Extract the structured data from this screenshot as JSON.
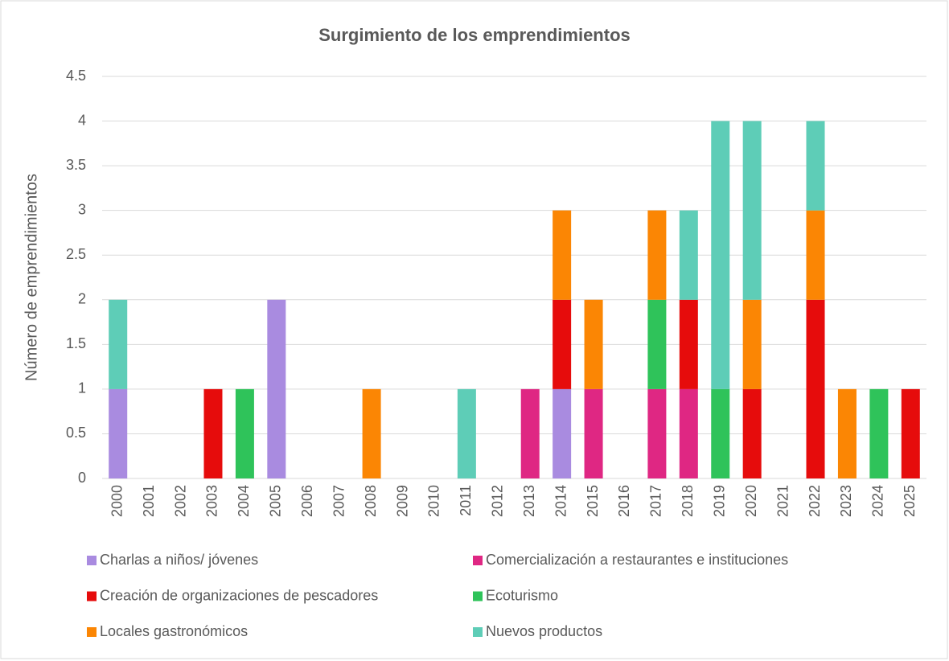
{
  "chart_data": {
    "type": "bar",
    "stacked": true,
    "title": "Surgimiento de los emprendimientos",
    "y_label": "Número de emprendimientos",
    "categories": [
      "2000",
      "2001",
      "2002",
      "2003",
      "2004",
      "2005",
      "2006",
      "2007",
      "2008",
      "2009",
      "2010",
      "2011",
      "2012",
      "2013",
      "2014",
      "2015",
      "2016",
      "2017",
      "2018",
      "2019",
      "2020",
      "2021",
      "2022",
      "2023",
      "2024",
      "2025"
    ],
    "series": [
      {
        "name": "Charlas a niños/ jóvenes",
        "color": "#a98be0",
        "values": [
          1,
          0,
          0,
          0,
          0,
          2,
          0,
          0,
          0,
          0,
          0,
          0,
          0,
          0,
          1,
          0,
          0,
          0,
          0,
          0,
          0,
          0,
          0,
          0,
          0,
          0
        ]
      },
      {
        "name": "Comercialización a restaurantes e instituciones",
        "color": "#df2783",
        "values": [
          0,
          0,
          0,
          0,
          0,
          0,
          0,
          0,
          0,
          0,
          0,
          0,
          0,
          1,
          0,
          1,
          0,
          1,
          1,
          0,
          0,
          0,
          0,
          0,
          0,
          0
        ]
      },
      {
        "name": "Creación de organizaciones de pescadores",
        "color": "#e60c0c",
        "values": [
          0,
          0,
          0,
          1,
          0,
          0,
          0,
          0,
          0,
          0,
          0,
          0,
          0,
          0,
          1,
          0,
          0,
          0,
          1,
          0,
          1,
          0,
          2,
          0,
          0,
          1
        ]
      },
      {
        "name": "Ecoturismo",
        "color": "#2fc35a",
        "values": [
          0,
          0,
          0,
          0,
          1,
          0,
          0,
          0,
          0,
          0,
          0,
          0,
          0,
          0,
          0,
          0,
          0,
          1,
          0,
          1,
          0,
          0,
          0,
          0,
          1,
          0
        ]
      },
      {
        "name": "Locales gastronómicos",
        "color": "#fb8604",
        "values": [
          0,
          0,
          0,
          0,
          0,
          0,
          0,
          0,
          1,
          0,
          0,
          0,
          0,
          0,
          1,
          1,
          0,
          1,
          0,
          0,
          1,
          0,
          1,
          1,
          0,
          0
        ]
      },
      {
        "name": "Nuevos productos",
        "color": "#5ecdb7",
        "values": [
          1,
          0,
          0,
          0,
          0,
          0,
          0,
          0,
          0,
          0,
          0,
          1,
          0,
          0,
          0,
          0,
          0,
          0,
          1,
          3,
          2,
          0,
          1,
          0,
          0,
          0
        ]
      }
    ],
    "ylim": [
      0,
      4.5
    ],
    "yticks": [
      0,
      0.5,
      1,
      1.5,
      2,
      2.5,
      3,
      3.5,
      4,
      4.5
    ],
    "grid": true
  }
}
